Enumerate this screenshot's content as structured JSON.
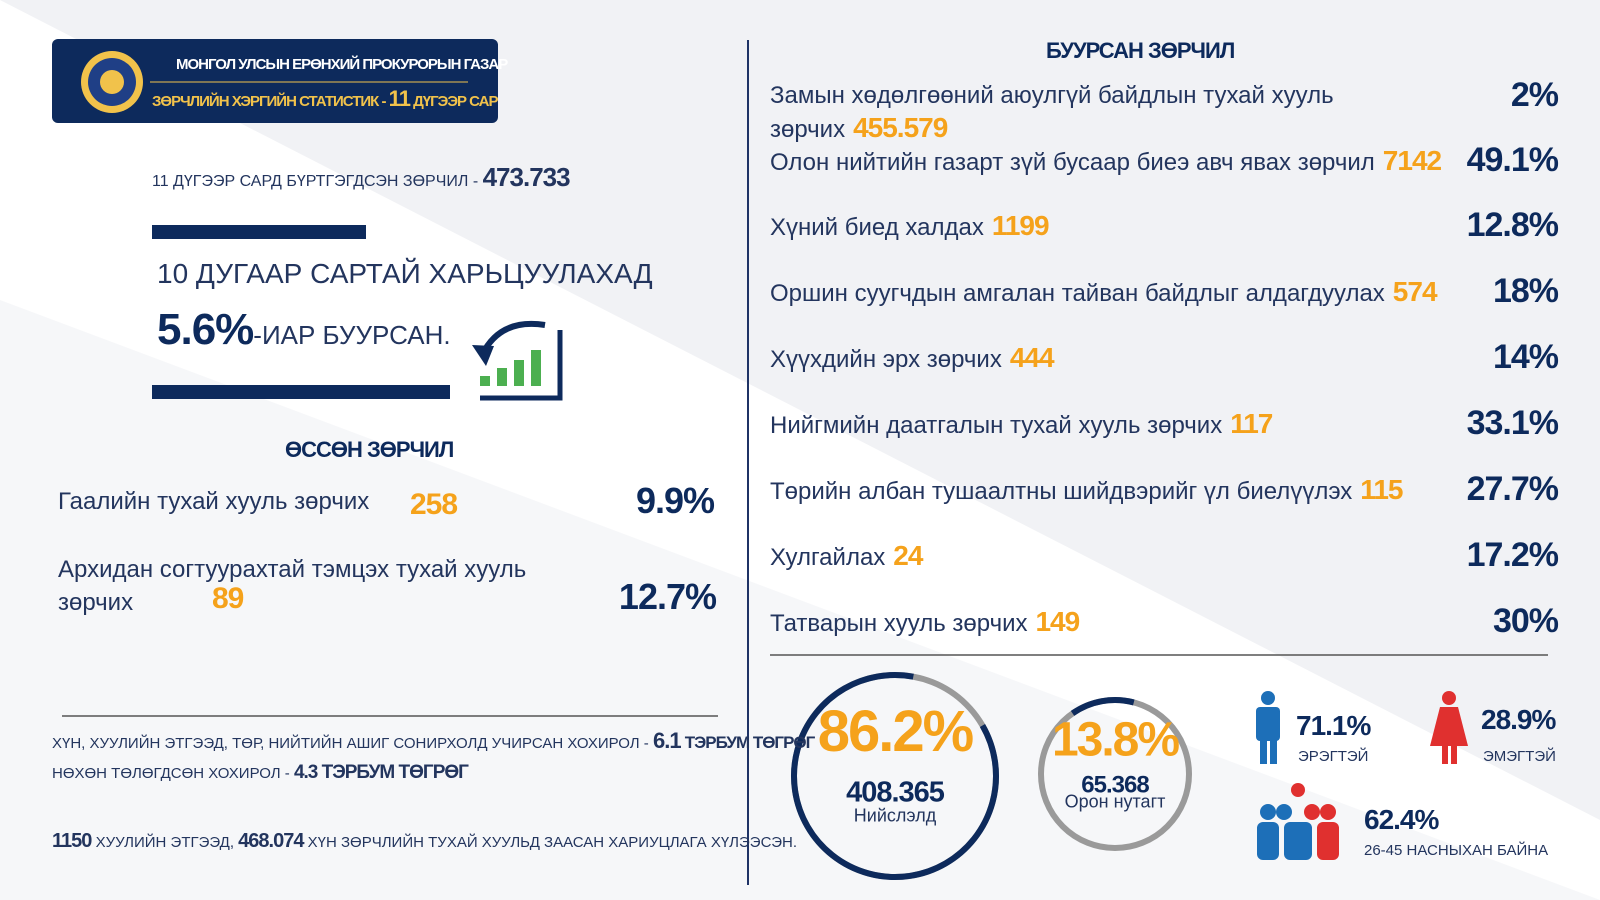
{
  "header": {
    "org": "МОНГОЛ УЛСЫН ЕРӨНХИЙ ПРОКУРОРЫН ГАЗАР",
    "subtitle": "ЗӨРЧЛИЙН ХЭРГИЙН СТАТИСТИК -",
    "month_number": "11",
    "month_word": "ДҮГЭЭР САР"
  },
  "summary": {
    "registered_label": "11 ДҮГЭЭР САРД БҮРТГЭГДСЭН ЗӨРЧИЛ -",
    "registered_value": "473.733",
    "comparison": "10 ДУГААР САРТАЙ ХАРЬЦУУЛАХАД",
    "change_value": "5.6%",
    "change_text": "-ИАР БУУРСАН."
  },
  "increased": {
    "title": "ӨССӨН ЗӨРЧИЛ",
    "items": [
      {
        "label": "Гаалийн тухай хууль зөрчих",
        "count": "258",
        "percent": "9.9%"
      },
      {
        "label": "Архидан согтуурахтай тэмцэх тухай хууль зөрчих",
        "count": "89",
        "percent": "12.7%"
      }
    ]
  },
  "decreased": {
    "title": "БУУРСАН ЗӨРЧИЛ",
    "items": [
      {
        "label": "Замын хөдөлгөөний аюулгүй байдлын тухай хууль зөрчих",
        "count": "455.579",
        "percent": "2%"
      },
      {
        "label": "Олон нийтийн газарт зүй бусаар биеэ авч явах зөрчил",
        "count": "7142",
        "percent": "49.1%"
      },
      {
        "label": "Хүний биед халдах",
        "count": "1199",
        "percent": "12.8%"
      },
      {
        "label": "Оршин суугчдын амгалан тайван байдлыг алдагдуулах",
        "count": "574",
        "percent": "18%"
      },
      {
        "label": "Хүүхдийн эрх зөрчих",
        "count": "444",
        "percent": "14%"
      },
      {
        "label": "Нийгмийн даатгалын тухай хууль зөрчих",
        "count": "117",
        "percent": "33.1%"
      },
      {
        "label": "Төрийн албан тушаалтны шийдвэрийг үл биелүүлэх",
        "count": "115",
        "percent": "27.7%"
      },
      {
        "label": "Хулгайлах",
        "count": "24",
        "percent": "17.2%"
      },
      {
        "label": "Татварын хууль зөрчих",
        "count": "149",
        "percent": "30%"
      }
    ]
  },
  "damages": {
    "damage_label": "ХҮН, ХУУЛИЙН ЭТГЭЭД, ТӨР, НИЙТИЙН АШИГ СОНИРХОЛД УЧИРСАН ХОХИРОЛ -",
    "damage_value": "6.1",
    "damage_unit": "ТЭРБУМ ТӨГРӨГ",
    "paid_label": "НӨХӨН ТӨЛӨГДСӨН ХОХИРОЛ -",
    "paid_value": "4.3 ТЭРБУМ ТӨГРӨГ",
    "entities": "1150",
    "entities_text": "ХУУЛИЙН ЭТГЭЭД,",
    "persons": "468.074",
    "persons_text": "ХҮН ЗӨРЧЛИЙН ТУХАЙ ХУУЛЬД ЗААСАН ХАРИУЦЛАГА ХҮЛЭЭСЭН."
  },
  "location": {
    "capital": {
      "share": {
        "value": 86.2,
        "label": "86.2%"
      },
      "count": "408.365",
      "name": "Нийслэлд"
    },
    "rural": {
      "share": {
        "value": 13.8,
        "label": "13.8%"
      },
      "count": "65.368",
      "name": "Орон нутагт"
    }
  },
  "demographics": {
    "male": {
      "percent": "71.1%",
      "label": "ЭРЭГТЭЙ"
    },
    "female": {
      "percent": "28.9%",
      "label": "ЭМЭГТЭЙ"
    },
    "age": {
      "percent": "62.4%",
      "label": "26-45 НАСНЫХАН БАЙНА"
    }
  }
}
